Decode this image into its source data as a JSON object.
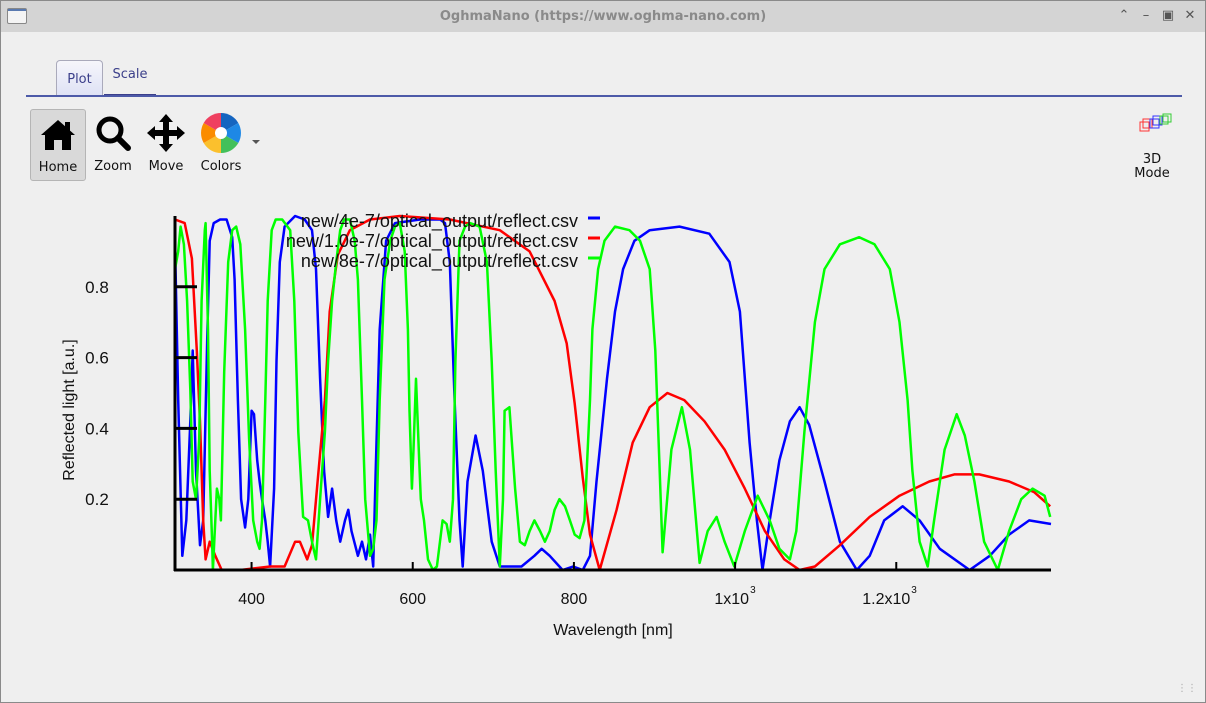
{
  "window": {
    "title": "OghmaNano (https://www.oghma-nano.com)",
    "controls": [
      "minimize",
      "maximize",
      "close"
    ]
  },
  "tabs": [
    {
      "label": "Plot",
      "active": true
    },
    {
      "label": "Scale",
      "active": false
    }
  ],
  "toolbar": {
    "home": "Home",
    "zoom": "Zoom",
    "move": "Move",
    "colors": "Colors",
    "mode3d_line1": "3D",
    "mode3d_line2": "Mode"
  },
  "chart_data": {
    "type": "line",
    "xlabel": "Wavelength [nm]",
    "ylabel": "Reflected light [a.u.]",
    "xlim": [
      305,
      1392
    ],
    "ylim": [
      0,
      1.0
    ],
    "legend_position": "top-center",
    "xticks": [
      {
        "value": 400,
        "label": "400"
      },
      {
        "value": 600,
        "label": "600"
      },
      {
        "value": 800,
        "label": "800"
      },
      {
        "value": 1000,
        "label": "1x10",
        "exp": "3"
      },
      {
        "value": 1200,
        "label": "1.2x10",
        "exp": "3"
      }
    ],
    "yticks": [
      {
        "value": 0.2,
        "label": "0.2"
      },
      {
        "value": 0.4,
        "label": "0.4"
      },
      {
        "value": 0.6,
        "label": "0.6"
      },
      {
        "value": 0.8,
        "label": "0.8"
      }
    ],
    "series": [
      {
        "name": "new/4e-7/optical_output/reflect.csv",
        "color": "#0000ff",
        "x": [
          305,
          309,
          314,
          319,
          324,
          327,
          331,
          336,
          340,
          345,
          348,
          353,
          361,
          369,
          376,
          379,
          383,
          387,
          392,
          396,
          400,
          403,
          407,
          410,
          413,
          417,
          420,
          423,
          428,
          431,
          435,
          441,
          454,
          466,
          475,
          480,
          485,
          490,
          495,
          500,
          505,
          510,
          516,
          520,
          524,
          532,
          537,
          542,
          547,
          551,
          554,
          559,
          567,
          578,
          609,
          634,
          640,
          646,
          652,
          658,
          662,
          668,
          678,
          687,
          698,
          708,
          735,
          751,
          760,
          770,
          786,
          799,
          811,
          820,
          828,
          841,
          851,
          861,
          875,
          894,
          931,
          968,
          993,
          1006,
          1018,
          1027,
          1034,
          1043,
          1055,
          1068,
          1080,
          1092,
          1111,
          1130,
          1151,
          1167,
          1185,
          1208,
          1229,
          1254,
          1291,
          1316,
          1340,
          1365,
          1392
        ],
        "y": [
          0.93,
          0.48,
          0.04,
          0.14,
          0.42,
          0.62,
          0.28,
          0.07,
          0.14,
          0.65,
          0.93,
          0.98,
          0.99,
          0.99,
          0.94,
          0.82,
          0.48,
          0.2,
          0.12,
          0.2,
          0.45,
          0.44,
          0.31,
          0.25,
          0.2,
          0.14,
          0.08,
          0.01,
          0.23,
          0.59,
          0.87,
          0.97,
          1.0,
          0.99,
          0.96,
          0.85,
          0.54,
          0.28,
          0.15,
          0.23,
          0.14,
          0.08,
          0.14,
          0.17,
          0.11,
          0.04,
          0.08,
          0.03,
          0.1,
          0.01,
          0.28,
          0.68,
          0.93,
          0.98,
          0.99,
          0.99,
          0.98,
          0.87,
          0.48,
          0.14,
          0.01,
          0.25,
          0.38,
          0.28,
          0.08,
          0.01,
          0.01,
          0.04,
          0.06,
          0.04,
          0.0,
          0.01,
          0.0,
          0.04,
          0.25,
          0.54,
          0.73,
          0.85,
          0.93,
          0.96,
          0.97,
          0.95,
          0.87,
          0.73,
          0.36,
          0.14,
          0.0,
          0.14,
          0.31,
          0.42,
          0.46,
          0.41,
          0.25,
          0.08,
          0.0,
          0.04,
          0.14,
          0.18,
          0.14,
          0.06,
          0.0,
          0.04,
          0.1,
          0.14,
          0.13
        ]
      },
      {
        "name": "new/1.0e-7/optical_output/reflect.csv",
        "color": "#ff0000",
        "x": [
          305,
          317,
          326,
          332,
          336,
          340,
          343,
          348,
          355,
          363,
          386,
          423,
          441,
          454,
          460,
          469,
          475,
          482,
          491,
          497,
          507,
          522,
          547,
          584,
          646,
          708,
          745,
          776,
          791,
          801,
          811,
          820,
          832,
          853,
          873,
          894,
          916,
          937,
          962,
          987,
          1012,
          1037,
          1061,
          1080,
          1099,
          1130,
          1167,
          1204,
          1241,
          1272,
          1303,
          1340,
          1371,
          1391
        ],
        "y": [
          0.99,
          0.98,
          0.88,
          0.62,
          0.42,
          0.14,
          0.03,
          0.08,
          0.04,
          0.0,
          0.0,
          0.01,
          0.01,
          0.08,
          0.08,
          0.03,
          0.07,
          0.25,
          0.48,
          0.73,
          0.89,
          0.96,
          0.99,
          1.0,
          0.99,
          0.96,
          0.9,
          0.76,
          0.64,
          0.47,
          0.26,
          0.1,
          0.0,
          0.17,
          0.36,
          0.46,
          0.5,
          0.48,
          0.42,
          0.34,
          0.23,
          0.11,
          0.03,
          0.0,
          0.01,
          0.07,
          0.15,
          0.21,
          0.25,
          0.27,
          0.27,
          0.25,
          0.22,
          0.18
        ]
      },
      {
        "name": "new/8e-7/optical_output/reflect.csv",
        "color": "#00ff00",
        "x": [
          305,
          309,
          312,
          316,
          320,
          324,
          327,
          331,
          335,
          338,
          342,
          343,
          346,
          348,
          351,
          352,
          355,
          357,
          360,
          362,
          366,
          371,
          376,
          381,
          386,
          392,
          397,
          402,
          407,
          410,
          413,
          417,
          420,
          425,
          430,
          438,
          448,
          453,
          458,
          464,
          470,
          475,
          480,
          485,
          491,
          495,
          500,
          505,
          510,
          515,
          522,
          528,
          532,
          537,
          541,
          547,
          551,
          555,
          559,
          565,
          572,
          578,
          584,
          590,
          594,
          596,
          599,
          601,
          604,
          608,
          610,
          614,
          619,
          625,
          630,
          637,
          642,
          646,
          650,
          653,
          658,
          665,
          671,
          683,
          692,
          698,
          703,
          708,
          712,
          714,
          720,
          727,
          733,
          739,
          745,
          751,
          758,
          764,
          770,
          776,
          782,
          789,
          795,
          801,
          807,
          813,
          820,
          823,
          830,
          838,
          851,
          869,
          882,
          894,
          901,
          906,
          910,
          921,
          934,
          944,
          956,
          966,
          977,
          987,
          999,
          1012,
          1028,
          1043,
          1055,
          1068,
          1076,
          1086,
          1099,
          1111,
          1130,
          1154,
          1173,
          1192,
          1204,
          1214,
          1220,
          1229,
          1239,
          1247,
          1260,
          1275,
          1285,
          1297,
          1309,
          1326,
          1340,
          1355,
          1369,
          1384,
          1391
        ],
        "y": [
          0.85,
          0.9,
          0.97,
          0.92,
          0.76,
          0.51,
          0.25,
          0.2,
          0.37,
          0.76,
          0.96,
          0.98,
          0.68,
          0.28,
          0.08,
          0.0,
          0.14,
          0.23,
          0.2,
          0.14,
          0.56,
          0.87,
          0.96,
          0.97,
          0.92,
          0.68,
          0.37,
          0.14,
          0.08,
          0.06,
          0.14,
          0.48,
          0.76,
          0.96,
          0.99,
          0.99,
          0.96,
          0.76,
          0.39,
          0.15,
          0.14,
          0.08,
          0.03,
          0.2,
          0.39,
          0.59,
          0.76,
          0.87,
          0.96,
          0.99,
          0.99,
          0.93,
          0.82,
          0.48,
          0.2,
          0.04,
          0.06,
          0.14,
          0.48,
          0.82,
          0.93,
          0.97,
          0.98,
          0.9,
          0.68,
          0.45,
          0.23,
          0.34,
          0.54,
          0.31,
          0.2,
          0.14,
          0.03,
          0.0,
          0.01,
          0.14,
          0.13,
          0.08,
          0.2,
          0.59,
          0.93,
          0.97,
          0.98,
          0.97,
          0.87,
          0.59,
          0.28,
          0.01,
          0.2,
          0.45,
          0.46,
          0.23,
          0.08,
          0.07,
          0.11,
          0.14,
          0.11,
          0.08,
          0.11,
          0.17,
          0.2,
          0.18,
          0.14,
          0.1,
          0.09,
          0.14,
          0.48,
          0.68,
          0.85,
          0.93,
          0.97,
          0.96,
          0.93,
          0.85,
          0.62,
          0.31,
          0.05,
          0.34,
          0.46,
          0.34,
          0.02,
          0.11,
          0.15,
          0.08,
          0.01,
          0.11,
          0.21,
          0.14,
          0.06,
          0.03,
          0.11,
          0.39,
          0.7,
          0.85,
          0.92,
          0.94,
          0.92,
          0.85,
          0.7,
          0.48,
          0.28,
          0.08,
          0.01,
          0.14,
          0.34,
          0.44,
          0.38,
          0.25,
          0.08,
          0.0,
          0.11,
          0.2,
          0.23,
          0.21,
          0.15
        ]
      }
    ]
  }
}
